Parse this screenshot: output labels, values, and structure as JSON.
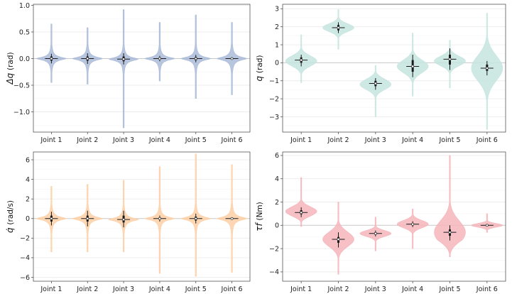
{
  "chart_data": [
    {
      "type": "violin",
      "ylabel_symbol": "Δq",
      "ylabel_unit": "(rad)",
      "ylim": [
        -1.38,
        1.02
      ],
      "yticks": [
        -1.0,
        -0.5,
        0.0,
        0.5,
        1.0
      ],
      "ytick_labels": [
        "−1.0",
        "−0.5",
        "0.0",
        "0.5",
        "1.0"
      ],
      "categories": [
        "Joint 1",
        "Joint 2",
        "Joint 3",
        "Joint 4",
        "Joint 5",
        "Joint 6"
      ],
      "color": "#aabbd8",
      "shape": "peaked",
      "grid": true,
      "series": [
        {
          "median": 0.0,
          "q1": -0.04,
          "q3": 0.04,
          "whisker_low": -0.09,
          "whisker_high": 0.09,
          "min": -0.45,
          "max": 0.65,
          "core_halfwidth": 0.35
        },
        {
          "median": 0.0,
          "q1": -0.04,
          "q3": 0.04,
          "whisker_low": -0.1,
          "whisker_high": 0.1,
          "min": -0.48,
          "max": 0.58,
          "core_halfwidth": 0.37
        },
        {
          "median": -0.01,
          "q1": -0.05,
          "q3": 0.04,
          "whisker_low": -0.11,
          "whisker_high": 0.1,
          "min": -1.3,
          "max": 0.92,
          "core_halfwidth": 0.36
        },
        {
          "median": 0.0,
          "q1": -0.02,
          "q3": 0.02,
          "whisker_low": -0.05,
          "whisker_high": 0.05,
          "min": -0.42,
          "max": 0.68,
          "core_halfwidth": 0.34
        },
        {
          "median": 0.0,
          "q1": -0.03,
          "q3": 0.03,
          "whisker_low": -0.07,
          "whisker_high": 0.07,
          "min": -0.75,
          "max": 0.82,
          "core_halfwidth": 0.36
        },
        {
          "median": 0.0,
          "q1": -0.01,
          "q3": 0.01,
          "whisker_low": -0.02,
          "whisker_high": 0.02,
          "min": -0.68,
          "max": 0.68,
          "core_halfwidth": 0.38
        }
      ]
    },
    {
      "type": "violin",
      "ylabel_symbol": "q",
      "ylabel_unit": "(rad)",
      "ylim": [
        -3.85,
        3.25
      ],
      "yticks": [
        -3,
        -2,
        -1,
        0,
        1,
        2,
        3
      ],
      "ytick_labels": [
        "−3",
        "−2",
        "−1",
        "0",
        "1",
        "2",
        "3"
      ],
      "categories": [
        "Joint 1",
        "Joint 2",
        "Joint 3",
        "Joint 4",
        "Joint 5",
        "Joint 6"
      ],
      "color": "#c6e5df",
      "shape": "smooth",
      "grid": true,
      "series": [
        {
          "median": 0.15,
          "q1": 0.0,
          "q3": 0.3,
          "whisker_low": -0.2,
          "whisker_high": 0.45,
          "min": -1.1,
          "max": 1.55,
          "width": 0.32,
          "peak": 0.1
        },
        {
          "median": 1.95,
          "q1": 1.8,
          "q3": 2.1,
          "whisker_low": 1.65,
          "whisker_high": 2.25,
          "min": 0.75,
          "max": 2.95,
          "width": 0.3,
          "peak": 1.95
        },
        {
          "median": -1.15,
          "q1": -1.3,
          "q3": -1.0,
          "whisker_low": -1.5,
          "whisker_high": -0.85,
          "min": -3.0,
          "max": -0.15,
          "width": 0.3,
          "peak": -1.2
        },
        {
          "median": -0.2,
          "q1": -0.5,
          "q3": 0.15,
          "whisker_low": -0.8,
          "whisker_high": 0.45,
          "min": -1.85,
          "max": 1.65,
          "width": 0.3,
          "peak": -0.2
        },
        {
          "median": 0.2,
          "q1": -0.1,
          "q3": 0.45,
          "whisker_low": -0.4,
          "whisker_high": 0.8,
          "min": -1.4,
          "max": 1.25,
          "width": 0.3,
          "peak": 0.1
        },
        {
          "median": -0.3,
          "q1": -0.45,
          "q3": -0.1,
          "whisker_low": -0.7,
          "whisker_high": 0.1,
          "min": -3.7,
          "max": 2.75,
          "width": 0.32,
          "peak": -0.3
        }
      ]
    },
    {
      "type": "violin",
      "ylabel_symbol": "q̇",
      "ylabel_unit": "(rad/s)",
      "ylim": [
        -6.4,
        6.8
      ],
      "yticks": [
        -6,
        -4,
        -2,
        0,
        2,
        4,
        6
      ],
      "ytick_labels": [
        "−6",
        "−4",
        "−2",
        "0",
        "2",
        "4",
        "6"
      ],
      "categories": [
        "Joint 1",
        "Joint 2",
        "Joint 3",
        "Joint 4",
        "Joint 5",
        "Joint 6"
      ],
      "color": "#fdd0a6",
      "shape": "peaked",
      "grid": true,
      "series": [
        {
          "median": 0.0,
          "q1": -0.3,
          "q3": 0.3,
          "whisker_low": -0.7,
          "whisker_high": 0.7,
          "min": -3.4,
          "max": 3.3,
          "core_halfwidth": 0.36
        },
        {
          "median": 0.0,
          "q1": -0.3,
          "q3": 0.3,
          "whisker_low": -0.8,
          "whisker_high": 0.8,
          "min": -3.4,
          "max": 3.5,
          "core_halfwidth": 0.37
        },
        {
          "median": -0.1,
          "q1": -0.4,
          "q3": 0.3,
          "whisker_low": -0.9,
          "whisker_high": 0.8,
          "min": -3.4,
          "max": 3.9,
          "core_halfwidth": 0.36
        },
        {
          "median": 0.0,
          "q1": -0.1,
          "q3": 0.1,
          "whisker_low": -0.3,
          "whisker_high": 0.3,
          "min": -5.6,
          "max": 5.3,
          "core_halfwidth": 0.34
        },
        {
          "median": 0.0,
          "q1": -0.2,
          "q3": 0.2,
          "whisker_low": -0.5,
          "whisker_high": 0.5,
          "min": -5.9,
          "max": 6.6,
          "core_halfwidth": 0.36
        },
        {
          "median": 0.0,
          "q1": -0.02,
          "q3": 0.02,
          "whisker_low": -0.05,
          "whisker_high": 0.05,
          "min": -5.5,
          "max": 5.5,
          "core_halfwidth": 0.38
        }
      ]
    },
    {
      "type": "violin",
      "ylabel_symbol": "τf",
      "ylabel_unit": "(Nm)",
      "ylim": [
        -4.8,
        6.3
      ],
      "yticks": [
        -4,
        -2,
        0,
        2,
        4,
        6
      ],
      "ytick_labels": [
        "−4",
        "−2",
        "0",
        "2",
        "4",
        "6"
      ],
      "categories": [
        "Joint 1",
        "Joint 2",
        "Joint 3",
        "Joint 4",
        "Joint 5",
        "Joint 6"
      ],
      "color": "#f5b5bb",
      "shape": "smooth",
      "grid": true,
      "series": [
        {
          "median": 1.1,
          "q1": 0.95,
          "q3": 1.3,
          "whisker_low": 0.7,
          "whisker_high": 1.55,
          "min": -0.1,
          "max": 4.1,
          "width": 0.28,
          "peak": 1.2
        },
        {
          "median": -1.2,
          "q1": -1.5,
          "q3": -1.0,
          "whisker_low": -1.9,
          "whisker_high": -0.6,
          "min": -4.2,
          "max": 2.0,
          "width": 0.3,
          "peak": -1.2
        },
        {
          "median": -0.7,
          "q1": -0.8,
          "q3": -0.6,
          "whisker_low": -0.95,
          "whisker_high": -0.45,
          "min": -2.2,
          "max": 0.7,
          "width": 0.26,
          "peak": -0.7
        },
        {
          "median": 0.1,
          "q1": 0.0,
          "q3": 0.2,
          "whisker_low": -0.15,
          "whisker_high": 0.35,
          "min": -2.0,
          "max": 1.4,
          "width": 0.28,
          "peak": 0.1
        },
        {
          "median": -0.6,
          "q1": -0.9,
          "q3": -0.35,
          "whisker_low": -1.3,
          "whisker_high": 0.0,
          "min": -2.7,
          "max": 6.0,
          "width": 0.34,
          "peak": -0.6
        },
        {
          "median": 0.0,
          "q1": -0.05,
          "q3": 0.05,
          "whisker_low": -0.1,
          "whisker_high": 0.1,
          "min": -0.6,
          "max": 1.0,
          "width": 0.3,
          "peak": 0.0
        }
      ]
    }
  ]
}
